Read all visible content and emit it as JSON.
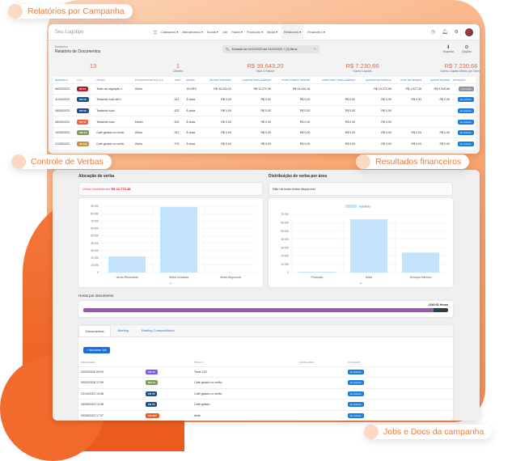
{
  "nav": {
    "logo": "Seu Logotipo",
    "menu": [
      "Cadastros ▾",
      "Atendimento ▾",
      "Social ▾",
      "Job",
      "Pauta ▾",
      "Produção ▾",
      "Mídia ▾",
      "Relatórios ▾",
      "Financeiro ▾"
    ],
    "active": "Relatórios ▾"
  },
  "header": {
    "breadcrumb": "Relatórios",
    "title": "Relatório de Documentos",
    "filter": "Emissão de 01/01/2023 até 31/12/2023 + (3) filtros",
    "export": "Exportar",
    "options": "Opções"
  },
  "kpis": [
    {
      "value": "13",
      "label": ""
    },
    {
      "value": "1",
      "label": "Clientes"
    },
    {
      "value": "R$ 39.643,20",
      "label": "Valor a Faturar"
    },
    {
      "value": "R$ 7.230,66",
      "label": "Ganho Líquido"
    },
    {
      "value": "R$ 7.230,66",
      "label": "Ganho Líquido Médio por Cliente"
    }
  ],
  "table": {
    "headers": [
      "EMISSÃO ▾",
      "DOC.",
      "TÍTULO",
      "FORNECEDOR/VEÍCULO",
      "JOBS",
      "PRAZO",
      "VALOR A FATURAR",
      "CLIENTE PAGA AGÊNCIA",
      "TOTAL INVEST. CLIENTE",
      "FORN./VEÍC. PAGA AGÊNCIA",
      "GANHOS DA AGÊNCIA",
      "COM. DE VENDAS",
      "GANHO LÍQUIDO",
      "SITUAÇÃO"
    ],
    "rows": [
      [
        "06/03/2023",
        "MI 14",
        "Teste da migração 1",
        "Globo",
        "",
        "10 DRG",
        "R$ 34.243,20",
        "R$ 10.272,96",
        "R$ 44.516,16",
        "",
        "R$ 10.272,96",
        "R$ 1.027,30",
        "R$ 9.245,66",
        "Aprovado"
      ],
      [
        "11/04/2023",
        "PR 52",
        "Testando tudo alt b",
        "",
        "412",
        "À vista",
        "R$ 0,00",
        "R$ 0,00",
        "R$ 0,00",
        "R$ 0,00",
        "R$ 0,00",
        "R$ 0,00",
        "R$ 0,00",
        "Em Aberto"
      ],
      [
        "08/05/2023",
        "PR 55",
        "Testando tudo",
        "",
        "432",
        "À vista",
        "R$ 0,00",
        "R$ 0,00",
        "R$ 0,00",
        "R$ 0,00",
        "R$ 0,00",
        "",
        "",
        "Em Aberto"
      ],
      [
        "08/05/2023",
        "PP 41",
        "Testando tudo",
        "Marlei",
        "432",
        "À vista",
        "R$ 0,00",
        "R$ 0,00",
        "R$ 0,00",
        "R$ 0,00",
        "R$ 0,00",
        "",
        "",
        "Em Aberto"
      ],
      [
        "19/05/2023",
        "MO 12",
        "Café gelado no verão",
        "Globo",
        "347",
        "À vista",
        "R$ 0,00",
        "R$ 0,00",
        "R$ 0,00",
        "R$ 0,00",
        "R$ 0,00",
        "R$ 0,00",
        "R$ 0,00",
        "Em Aberto"
      ],
      [
        "21/05/2023",
        "MI 126",
        "Café gelado no verão",
        "Globo",
        "376",
        "À vista",
        "R$ 0,00",
        "R$ 0,00",
        "R$ 0,00",
        "R$ 0,00",
        "R$ 0,00",
        "R$ 0,00",
        "R$ 0,00",
        "Em Aberto"
      ]
    ],
    "badge_colors": [
      "#b0202a",
      "#1f4e8c",
      "#1f4e8c",
      "#f06040",
      "#7a9e5a",
      "#c8924a"
    ]
  },
  "alloc": {
    "title": "Alocação de verba",
    "notice": "Verba excedida em",
    "notice_value": "R$ 22.776,48."
  },
  "dist": {
    "title": "Distribuição de verba por área",
    "notice": "Não há mais verba disponível."
  },
  "chart_data": [
    {
      "type": "bar",
      "categories": [
        "Verba Reservada",
        "Verba Investida",
        "Verba Disponível"
      ],
      "values": [
        22000,
        89000,
        0
      ],
      "ylim": [
        0,
        90000
      ],
      "yticks": [
        "0",
        "10 000",
        "20 000",
        "30 000",
        "40 000",
        "50 000",
        "60 000",
        "70 000",
        "80 000",
        "90 000"
      ],
      "color": "#c2e3fb",
      "grid": true
    },
    {
      "type": "bar",
      "categories": [
        "Produção",
        "Mídia",
        "Serviços Internos"
      ],
      "series": [
        {
          "name": "Investido",
          "values": [
            1000,
            64000,
            24000
          ]
        }
      ],
      "ylim": [
        0,
        70000
      ],
      "yticks": [
        "0",
        "10 000",
        "20 000",
        "30 000",
        "40 000",
        "50 000",
        "60 000",
        "70 000"
      ],
      "color": "#c2e3fb",
      "grid": true,
      "legend": "top"
    }
  ],
  "hours": {
    "title": "Horas por documento",
    "value": "1540:52 Horas",
    "fill_percent": 96,
    "color": "#9b59b6"
  },
  "docs": {
    "tabs": [
      "Documentos",
      "Briefing",
      "Briefing Compartilhado"
    ],
    "add": "+ Adicionar Job",
    "headers": [
      "CRIADO EM",
      "",
      "TÍTULO",
      "CONCLUÍDO",
      "SITUAÇÃO"
    ],
    "rows": [
      [
        "23/02/2026 09:09",
        "PM 10",
        "Teste 123",
        "",
        "Em Aberto"
      ],
      [
        "09/02/2026 17:09",
        "MO 14",
        "Café gelado no verão",
        "",
        "Em Aberto"
      ],
      [
        "23/10/2023 13:58",
        "PR 78",
        "Café gelado no verão",
        "",
        "Em Aberto"
      ],
      [
        "16/06/2023 13:38",
        "PR 76",
        "Café gelado",
        "",
        "Em Aberto"
      ],
      [
        "05/06/2023 17:07",
        "AM 695",
        "teste",
        "",
        "Em Aberto"
      ]
    ],
    "badge_colors": [
      "#7b5cf0",
      "#7a9e5a",
      "#1f4e8c",
      "#1f4e8c",
      "#f05a28"
    ]
  },
  "callouts": [
    "Relatórios por Campanha",
    "Resultados financeiros",
    "Controle de Verbas",
    "Jobs e Docs da campanha"
  ]
}
